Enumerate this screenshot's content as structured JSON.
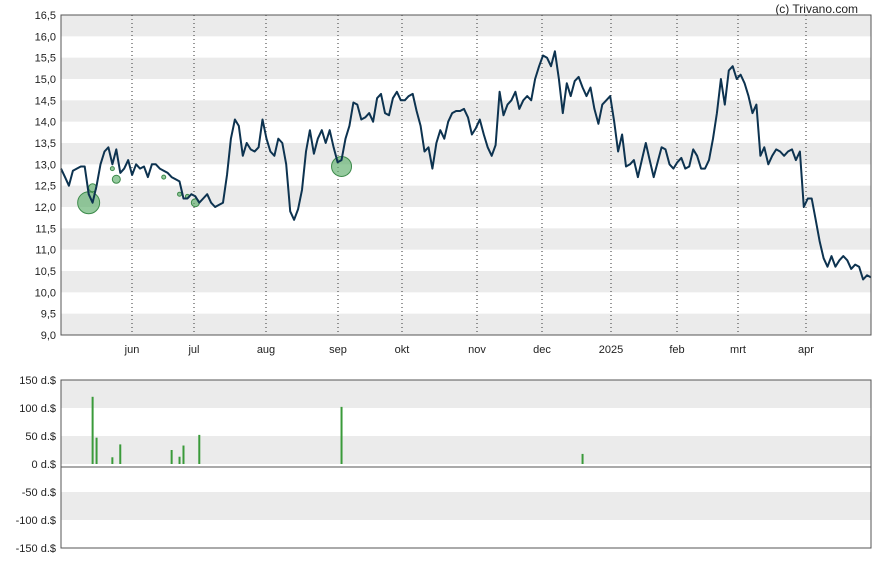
{
  "credit": "(c) Trivano.com",
  "colors": {
    "price_line": "#0d3350",
    "bubble_fill": "#5cae6a",
    "bubble_stroke": "#3c8a4a",
    "volume_bar": "#3a9a3a",
    "band": "#ebebeb"
  },
  "chart_data": [
    {
      "type": "line",
      "title": "",
      "xlabel": "",
      "ylabel": "",
      "ylim": [
        9.0,
        16.5
      ],
      "grid": "horizontal bands, dotted vertical month lines",
      "x_tick_labels": [
        "jun",
        "jul",
        "aug",
        "sep",
        "okt",
        "nov",
        "dec",
        "2025",
        "feb",
        "mrt",
        "apr"
      ],
      "y_tick_labels": [
        "9,0",
        "9,5",
        "10,0",
        "10,5",
        "11,0",
        "11,5",
        "12,0",
        "12,5",
        "13,0",
        "13,5",
        "14,0",
        "14,5",
        "15,0",
        "15,5",
        "16,0",
        "16,5"
      ],
      "series": [
        {
          "values": [
            12.9,
            12.7,
            12.5,
            12.85,
            12.9,
            12.95,
            12.95,
            12.3,
            12.1,
            12.5,
            13.0,
            13.3,
            13.4,
            13.0,
            13.35,
            12.8,
            12.9,
            13.1,
            12.75,
            13.0,
            12.9,
            12.95,
            12.7,
            13.0,
            13.0,
            12.9,
            12.85,
            12.8,
            12.7,
            12.65,
            12.6,
            12.2,
            12.2,
            12.3,
            12.25,
            12.1,
            12.2,
            12.3,
            12.1,
            12.0,
            12.05,
            12.1,
            12.75,
            13.6,
            14.05,
            13.9,
            13.2,
            13.5,
            13.35,
            13.3,
            13.4,
            14.05,
            13.6,
            13.3,
            13.2,
            13.6,
            13.5,
            13.0,
            11.9,
            11.7,
            11.95,
            12.4,
            13.3,
            13.8,
            13.25,
            13.6,
            13.8,
            13.5,
            13.8,
            13.4,
            13.05,
            13.1,
            13.6,
            13.9,
            14.45,
            14.4,
            14.05,
            14.1,
            14.2,
            14.0,
            14.55,
            14.65,
            14.2,
            14.15,
            14.55,
            14.7,
            14.5,
            14.5,
            14.6,
            14.65,
            14.25,
            13.9,
            13.3,
            13.4,
            12.9,
            13.5,
            13.8,
            13.6,
            14.0,
            14.2,
            14.25,
            14.25,
            14.3,
            14.1,
            13.7,
            13.85,
            14.05,
            13.7,
            13.4,
            13.2,
            13.45,
            14.7,
            14.15,
            14.4,
            14.5,
            14.7,
            14.3,
            14.5,
            14.6,
            14.5,
            15.0,
            15.3,
            15.55,
            15.5,
            15.3,
            15.65,
            15.0,
            14.2,
            14.9,
            14.6,
            14.95,
            15.05,
            14.8,
            14.6,
            14.8,
            14.3,
            13.95,
            14.4,
            14.5,
            14.6,
            14.0,
            13.3,
            13.7,
            12.95,
            13.0,
            13.1,
            12.7,
            13.1,
            13.5,
            13.1,
            12.7,
            13.05,
            13.4,
            13.35,
            13.0,
            12.9,
            13.05,
            13.15,
            12.9,
            12.95,
            13.35,
            13.2,
            12.9,
            12.9,
            13.1,
            13.6,
            14.2,
            15.0,
            14.4,
            15.2,
            15.3,
            15.0,
            15.1,
            14.9,
            14.6,
            14.2,
            14.4,
            13.2,
            13.4,
            13.0,
            13.2,
            13.35,
            13.3,
            13.2,
            13.3,
            13.35,
            13.1,
            13.3,
            12.0,
            12.2,
            12.2,
            11.7,
            11.2,
            10.8,
            10.6,
            10.85,
            10.6,
            10.75,
            10.85,
            10.75,
            10.55,
            10.65,
            10.6,
            10.3,
            10.4,
            10.35
          ]
        }
      ],
      "markers": [
        {
          "index": 7,
          "value": 12.1,
          "size": "large"
        },
        {
          "index": 8,
          "value": 12.45,
          "size": "small"
        },
        {
          "index": 13,
          "value": 12.9,
          "size": "tiny"
        },
        {
          "index": 14,
          "value": 12.65,
          "size": "small"
        },
        {
          "index": 26,
          "value": 12.7,
          "size": "tiny"
        },
        {
          "index": 30,
          "value": 12.3,
          "size": "tiny"
        },
        {
          "index": 32,
          "value": 12.25,
          "size": "tiny"
        },
        {
          "index": 34,
          "value": 12.1,
          "size": "small"
        },
        {
          "index": 71,
          "value": 12.95,
          "size": "medium"
        }
      ]
    },
    {
      "type": "bar",
      "title": "",
      "xlabel": "",
      "ylabel": "",
      "ylim": [
        -150,
        150
      ],
      "y_tick_labels": [
        "150 d.$",
        "100 d.$",
        "50 d.$",
        "0 d.$",
        "-50 d.$",
        "-100 d.$",
        "-150 d.$"
      ],
      "series": [
        {
          "points": [
            {
              "index": 8,
              "value": 120
            },
            {
              "index": 9,
              "value": 47
            },
            {
              "index": 13,
              "value": 12
            },
            {
              "index": 15,
              "value": 35
            },
            {
              "index": 28,
              "value": 25
            },
            {
              "index": 30,
              "value": 13
            },
            {
              "index": 31,
              "value": 33
            },
            {
              "index": 35,
              "value": 52
            },
            {
              "index": 71,
              "value": 102
            },
            {
              "index": 132,
              "value": 18
            }
          ]
        }
      ]
    }
  ]
}
